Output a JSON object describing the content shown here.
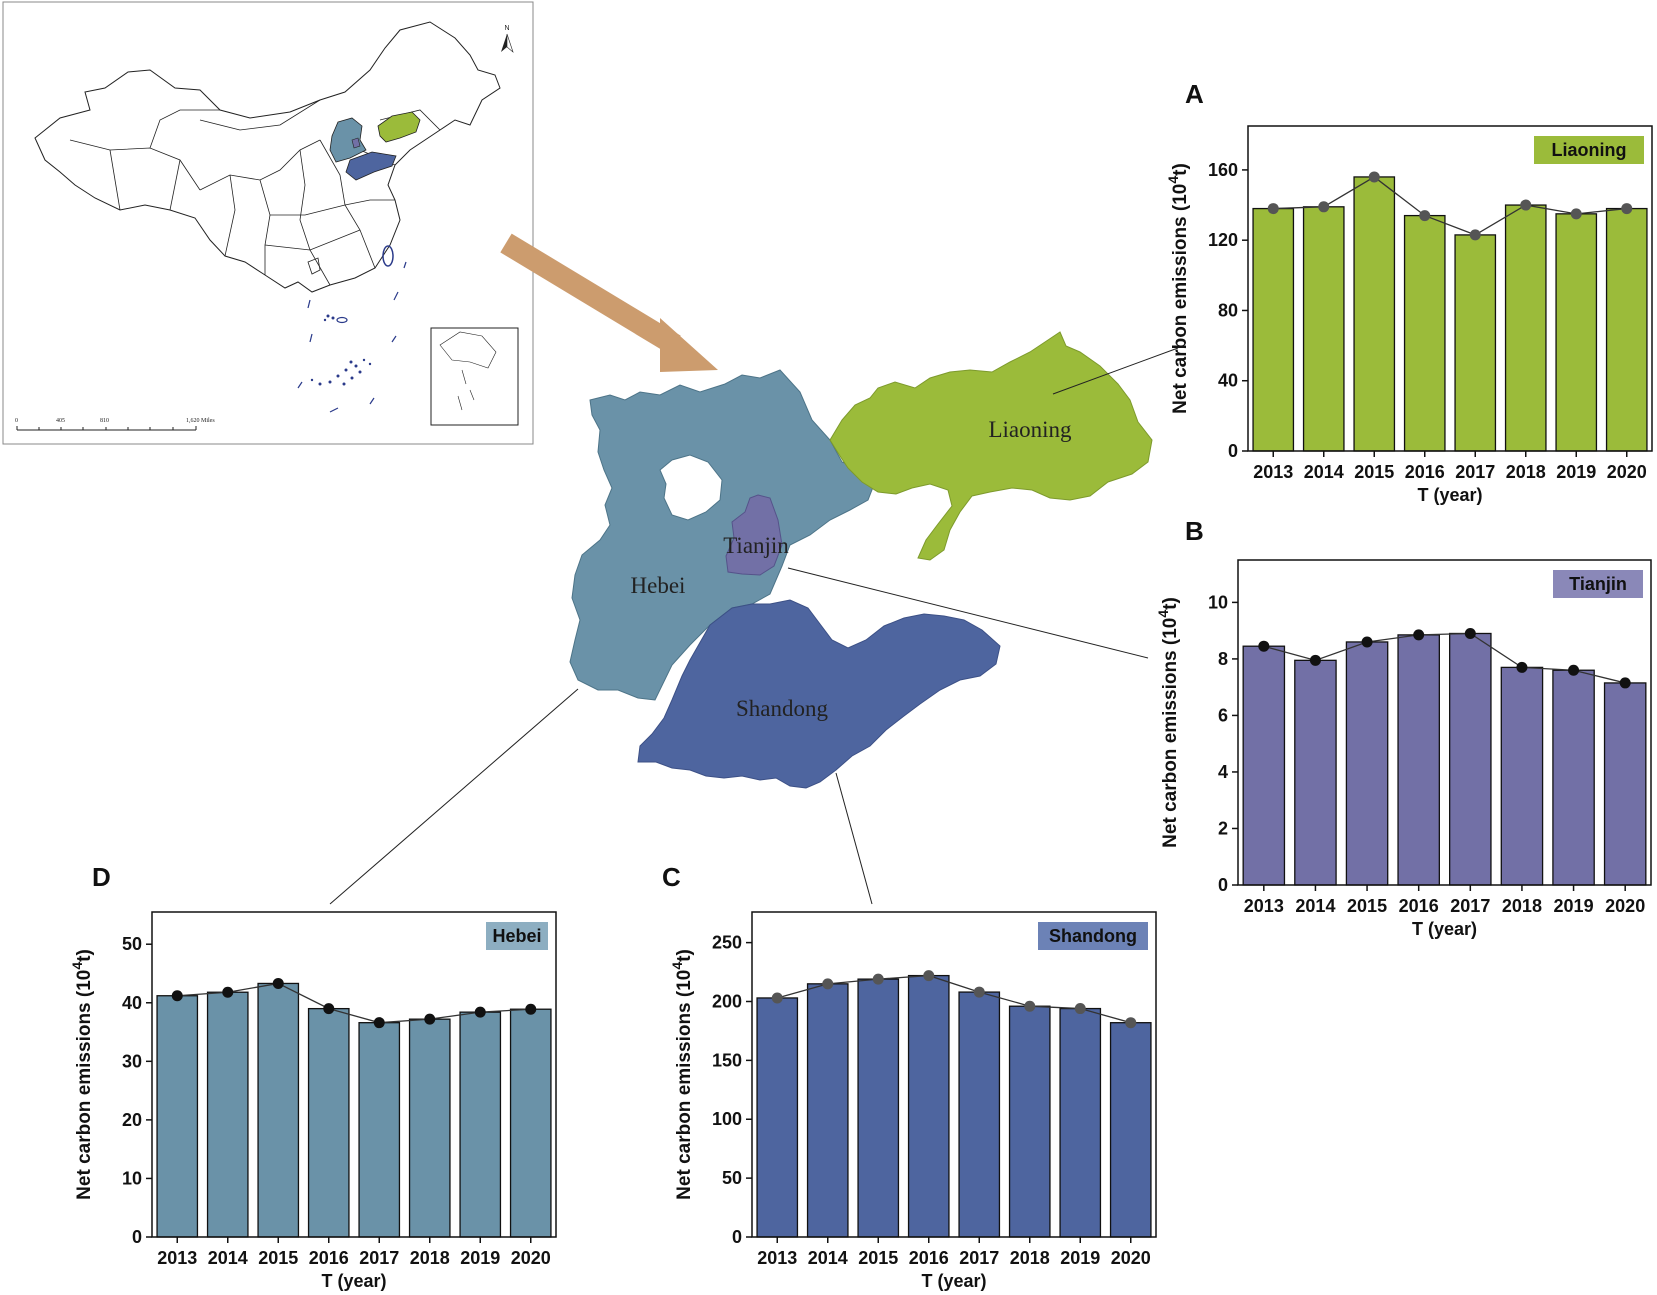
{
  "inset_map": {
    "north_label": "N",
    "scale_labels": [
      "0",
      "405",
      "810",
      "1,620 Miles"
    ]
  },
  "region_map": {
    "labels": {
      "liaoning": "Liaoning",
      "hebei": "Hebei",
      "tianjin": "Tianjin",
      "shandong": "Shandong"
    },
    "colors": {
      "liaoning": "#9bbb3a",
      "hebei": "#6a92a8",
      "tianjin": "#7270a6",
      "shandong": "#4e659f",
      "arrow": "#cc9c6e"
    }
  },
  "chart_data": [
    {
      "id": "A",
      "panel_letter": "A",
      "type": "bar",
      "title": "Liaoning",
      "categories": [
        "2013",
        "2014",
        "2015",
        "2016",
        "2017",
        "2018",
        "2019",
        "2020"
      ],
      "values": [
        138,
        139,
        156,
        134,
        123,
        140,
        135,
        138
      ],
      "xlabel": "T (year)",
      "ylabel": "Net carbon emissions (10",
      "ylabel_sup": "4",
      "ylabel_end": "t)",
      "ylim": [
        0,
        185
      ],
      "yticks": [
        "0",
        "40",
        "80",
        "120",
        "160"
      ],
      "bar_color": "#9bbb3a",
      "title_bg": "#9bbb3a",
      "marker_color": "#555555",
      "line": true
    },
    {
      "id": "B",
      "panel_letter": "B",
      "type": "bar",
      "title": "Tianjin",
      "categories": [
        "2013",
        "2014",
        "2015",
        "2016",
        "2017",
        "2018",
        "2019",
        "2020"
      ],
      "values": [
        8.45,
        7.95,
        8.6,
        8.85,
        8.9,
        7.7,
        7.6,
        7.15
      ],
      "xlabel": "T (year)",
      "ylabel": "Net carbon emissions (10",
      "ylabel_sup": "4",
      "ylabel_end": "t)",
      "ylim": [
        0,
        11.5
      ],
      "yticks": [
        "0",
        "2",
        "4",
        "6",
        "8",
        "10"
      ],
      "bar_color": "#7270a6",
      "title_bg": "#8a88b8",
      "marker_color": "#111111",
      "line": true
    },
    {
      "id": "C",
      "panel_letter": "C",
      "type": "bar",
      "title": "Shandong",
      "categories": [
        "2013",
        "2014",
        "2015",
        "2016",
        "2017",
        "2018",
        "2019",
        "2020"
      ],
      "values": [
        203,
        215,
        219,
        222,
        208,
        196,
        194,
        182
      ],
      "xlabel": "T (year)",
      "ylabel": "Net carbon emissions (10",
      "ylabel_sup": "4",
      "ylabel_end": "t)",
      "ylim": [
        0,
        276
      ],
      "yticks": [
        "0",
        "50",
        "100",
        "150",
        "200",
        "250"
      ],
      "bar_color": "#4e659f",
      "title_bg": "#6c82b6",
      "marker_color": "#555555",
      "line": true
    },
    {
      "id": "D",
      "panel_letter": "D",
      "type": "bar",
      "title": "Hebei",
      "categories": [
        "2013",
        "2014",
        "2015",
        "2016",
        "2017",
        "2018",
        "2019",
        "2020"
      ],
      "values": [
        41.2,
        41.8,
        43.3,
        39,
        36.6,
        37.2,
        38.4,
        38.9
      ],
      "xlabel": "T (year)",
      "ylabel": "Net carbon emissions (10",
      "ylabel_sup": "4",
      "ylabel_end": "t)",
      "ylim": [
        0,
        55.5
      ],
      "yticks": [
        "0",
        "10",
        "20",
        "30",
        "40",
        "50"
      ],
      "bar_color": "#6a92a8",
      "title_bg": "#8daec1",
      "marker_color": "#111111",
      "line": true
    }
  ]
}
